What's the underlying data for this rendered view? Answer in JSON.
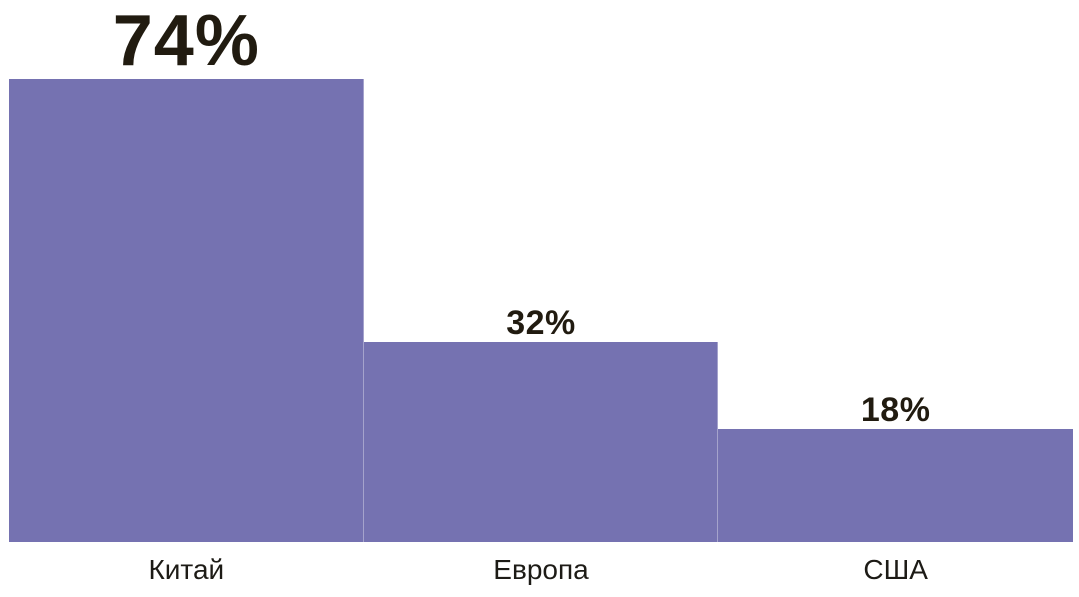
{
  "chart_data": {
    "type": "bar",
    "title": "",
    "xlabel": "",
    "ylabel": "",
    "categories": [
      "Китай",
      "Европа",
      "США"
    ],
    "values": [
      74,
      32,
      18
    ],
    "value_labels": [
      "74%",
      "32%",
      "18%"
    ],
    "ylim": [
      0,
      74
    ],
    "grid": false,
    "legend": "none",
    "axes_visible": false,
    "layout_hint": "step-style joined bars, no gaps, value labels above bars, category labels below, first value label emphasized larger",
    "colors": {
      "bar": "#7572B1",
      "bar_divider": "rgba(255,255,255,0.35)",
      "value_label": "#211B10",
      "category_label": "#1D1B16",
      "background": "#FFFFFF"
    }
  }
}
